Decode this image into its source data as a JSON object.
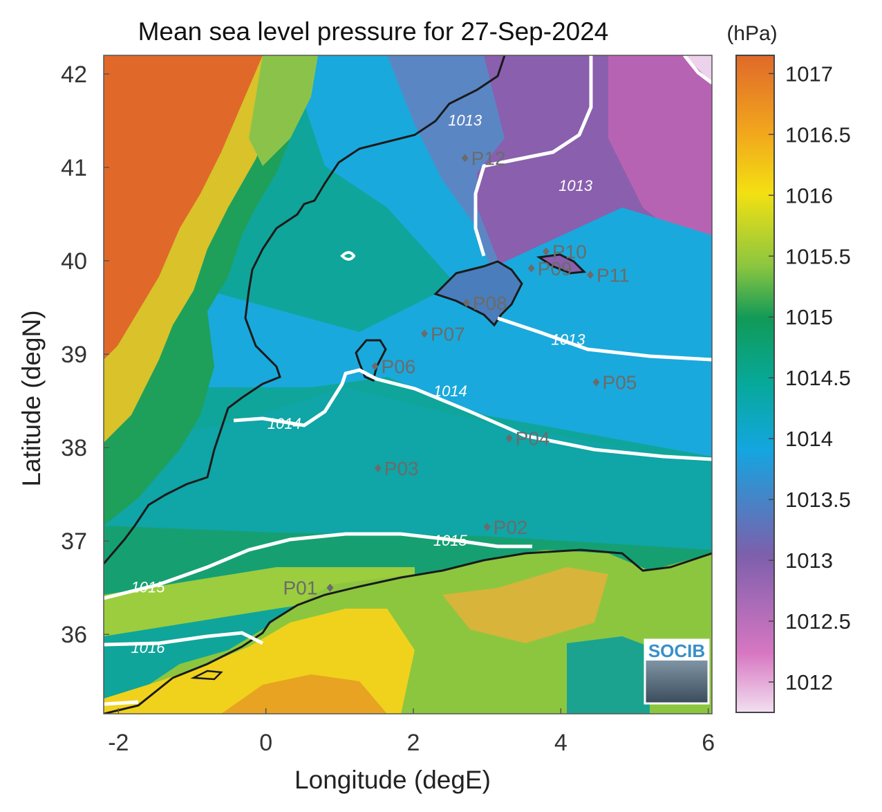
{
  "title": "Mean sea level pressure for 27-Sep-2024",
  "colorbar_unit": "(hPa)",
  "colorbar_ticks": [
    "1017",
    "1016.5",
    "1016",
    "1015.5",
    "1015",
    "1014.5",
    "1014",
    "1013.5",
    "1013",
    "1012.5",
    "1012"
  ],
  "colorbar_range": [
    1011.75,
    1017.15
  ],
  "xlabel": "Longitude (degE)",
  "ylabel": "Latitude (degN)",
  "xticks": [
    "-2",
    "0",
    "2",
    "4",
    "6"
  ],
  "yticks": [
    "42",
    "41",
    "40",
    "39",
    "38",
    "37",
    "36"
  ],
  "xlim": [
    -2.2,
    6.05
  ],
  "ylim": [
    35.15,
    42.2
  ],
  "logo_text": "SOCIB",
  "contour_labels": [
    {
      "text": "1013",
      "lon": 2.7,
      "lat": 41.45
    },
    {
      "text": "1013",
      "lon": 4.2,
      "lat": 40.75
    },
    {
      "text": "1013",
      "lon": 4.1,
      "lat": 39.1
    },
    {
      "text": "1014",
      "lon": 0.25,
      "lat": 38.2
    },
    {
      "text": "1014",
      "lon": 2.5,
      "lat": 38.55
    },
    {
      "text": "1015",
      "lon": 2.5,
      "lat": 36.95
    },
    {
      "text": "1015",
      "lon": -1.6,
      "lat": 36.45
    },
    {
      "text": "1016",
      "lon": -1.6,
      "lat": 35.8
    }
  ],
  "stations": [
    {
      "name": "P01",
      "lon": 0.87,
      "lat": 36.5
    },
    {
      "name": "P02",
      "lon": 3.0,
      "lat": 37.15
    },
    {
      "name": "P03",
      "lon": 1.52,
      "lat": 37.78
    },
    {
      "name": "P04",
      "lon": 3.3,
      "lat": 38.1
    },
    {
      "name": "P05",
      "lon": 4.48,
      "lat": 38.7
    },
    {
      "name": "P06",
      "lon": 1.48,
      "lat": 38.87
    },
    {
      "name": "P07",
      "lon": 2.15,
      "lat": 39.22
    },
    {
      "name": "P08",
      "lon": 2.72,
      "lat": 39.55
    },
    {
      "name": "P09",
      "lon": 3.6,
      "lat": 39.92
    },
    {
      "name": "P10",
      "lon": 3.8,
      "lat": 40.1
    },
    {
      "name": "P11",
      "lon": 4.4,
      "lat": 39.85
    },
    {
      "name": "P12",
      "lon": 2.7,
      "lat": 41.1
    }
  ],
  "colors": {
    "land_high": "#e0692a",
    "sea_low_pressure": "#8a5fae",
    "sea_mid": "#1aa9dc",
    "sea_high": "#0aa38c",
    "coast": "#1a1a1a",
    "contour": "#ffffff",
    "station_marker": "#6b6b6b"
  }
}
